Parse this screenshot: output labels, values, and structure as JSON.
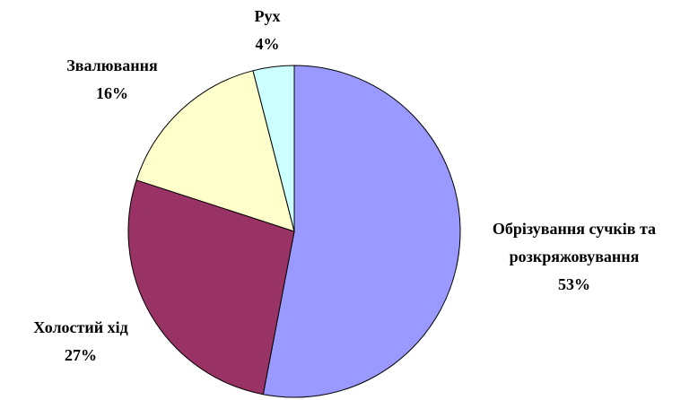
{
  "chart_data": {
    "type": "pie",
    "categories": [
      "Обрізування сучків та розкряжовування",
      "Холостий хід",
      "Звалювання",
      "Рух"
    ],
    "values": [
      53,
      27,
      16,
      4
    ],
    "value_labels": [
      "53%",
      "27%",
      "16%",
      "4%"
    ],
    "colors": [
      "#9999ff",
      "#993366",
      "#ffffcc",
      "#ccffff"
    ]
  }
}
